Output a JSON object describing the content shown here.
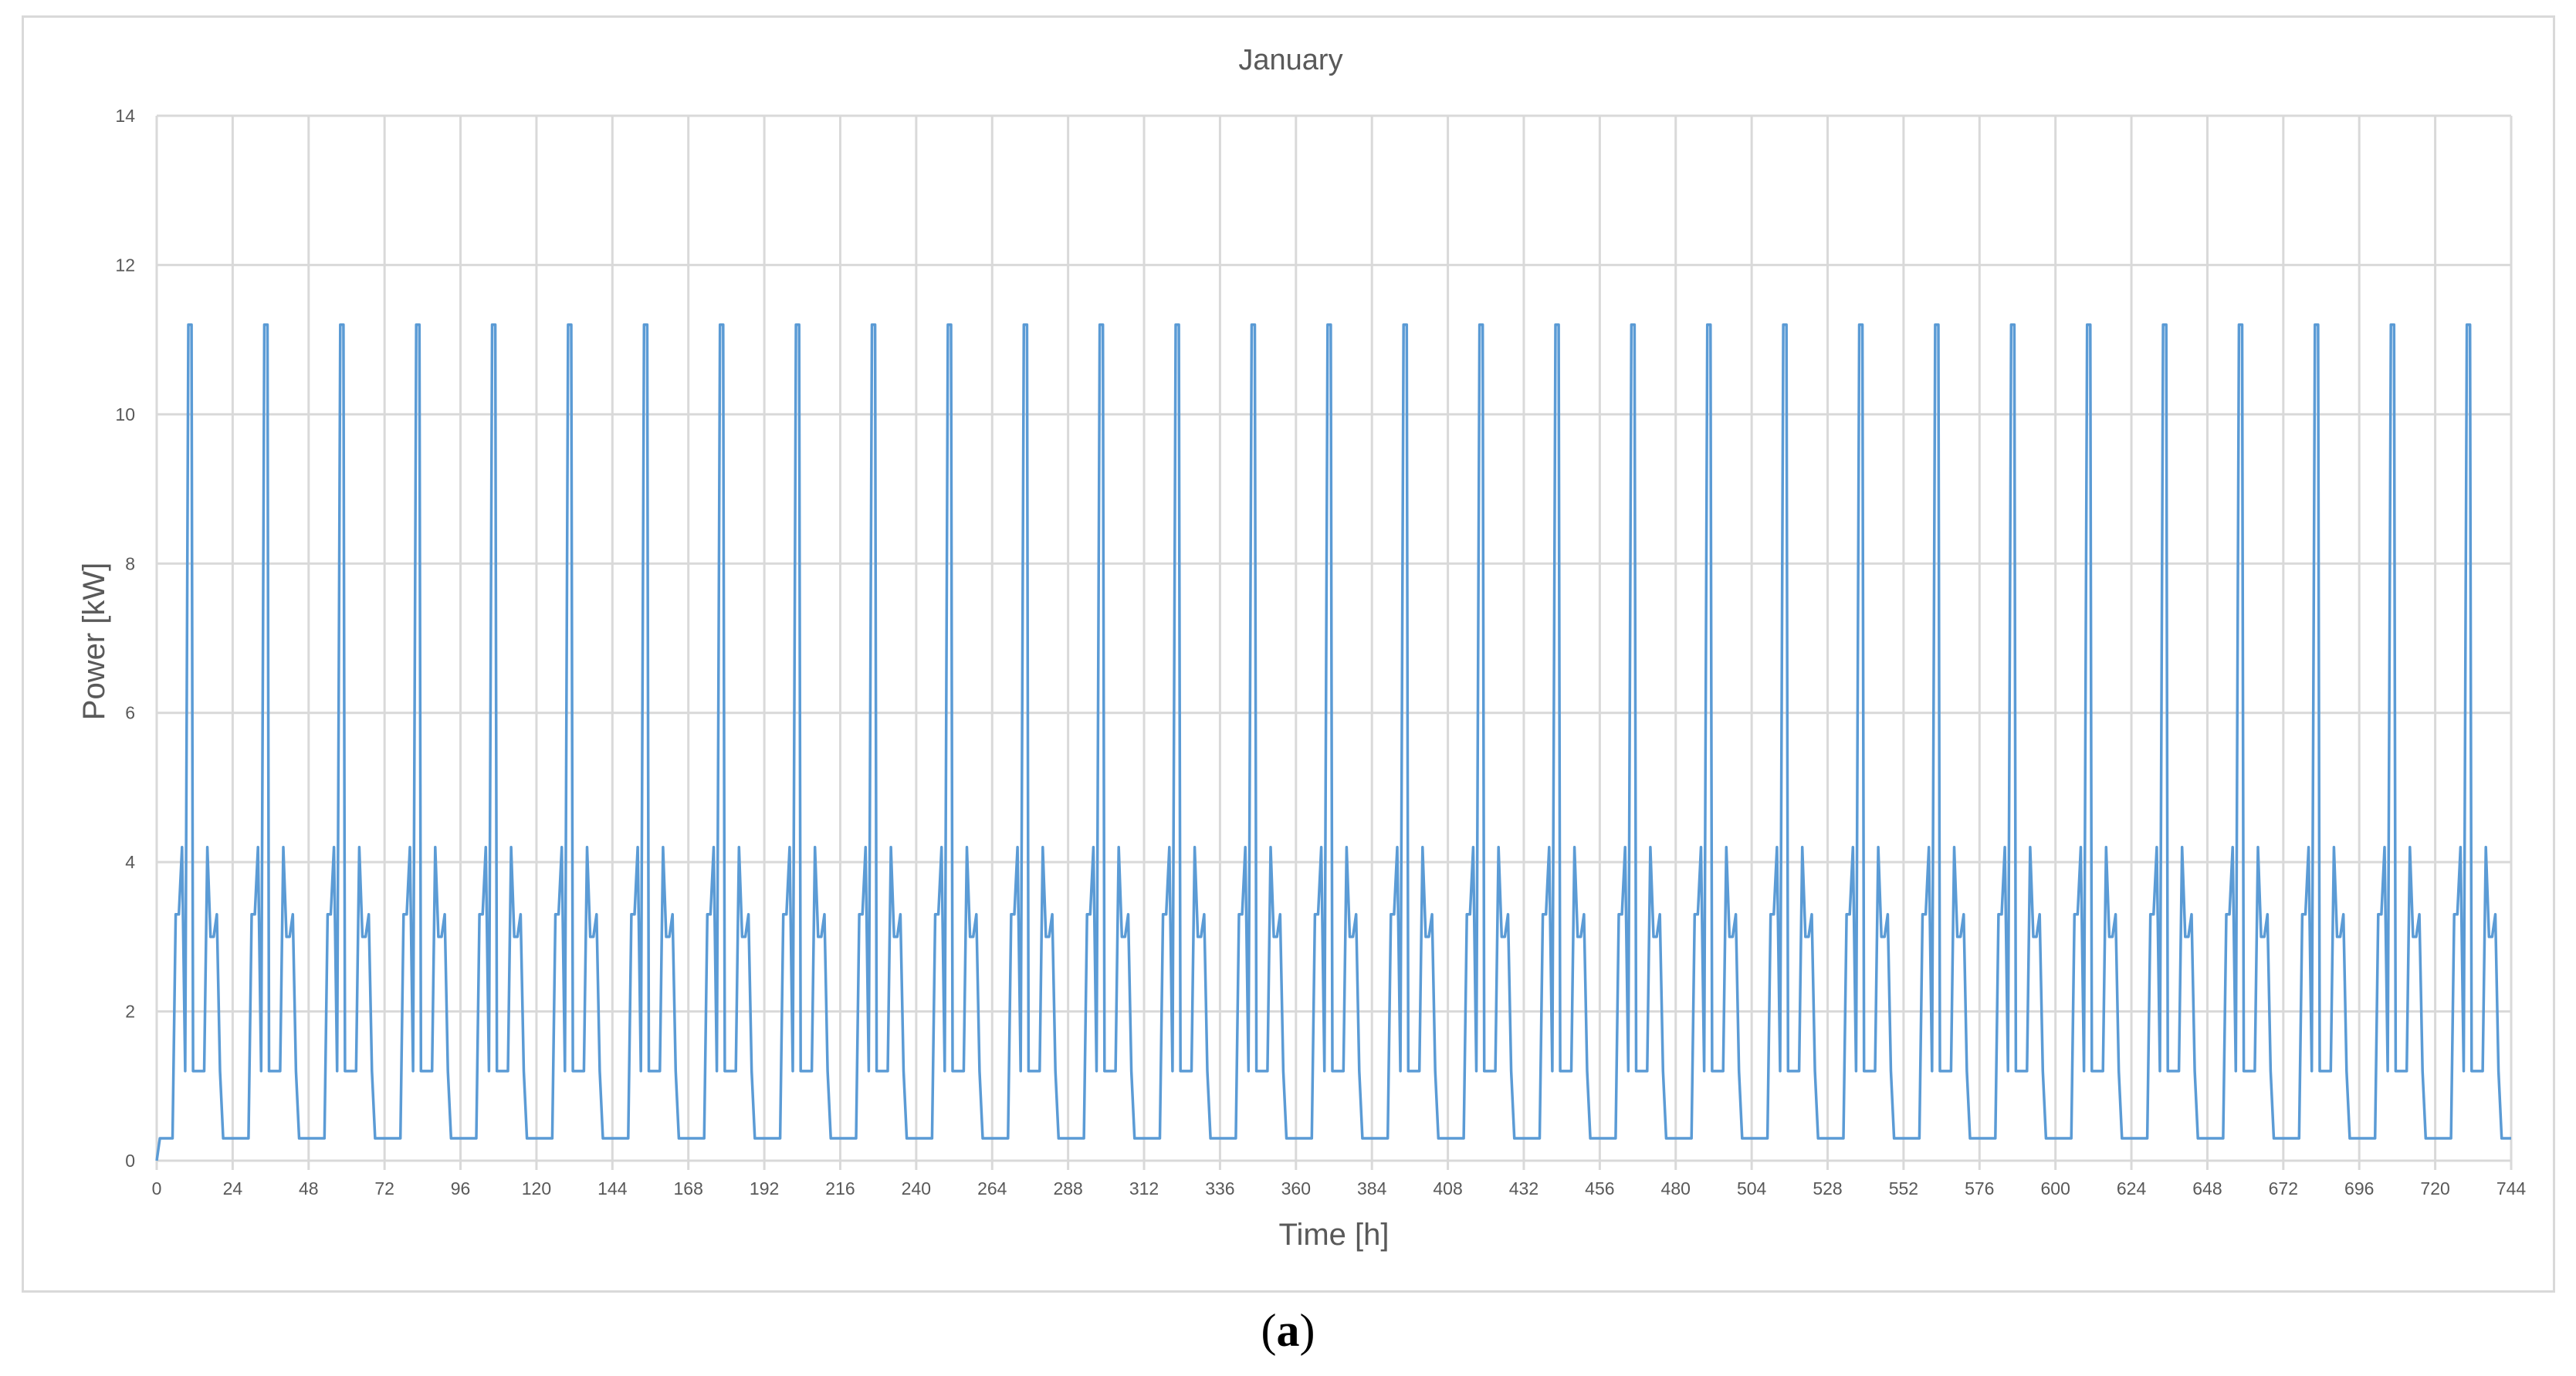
{
  "caption": {
    "open": "(",
    "letter": "a",
    "close": ")"
  },
  "chart_data": {
    "type": "line",
    "title": "January",
    "xlabel": "Time [h]",
    "ylabel": "Power [kW]",
    "xlim": [
      0,
      744
    ],
    "ylim": [
      0,
      14
    ],
    "xticks": [
      0,
      24,
      48,
      72,
      96,
      120,
      144,
      168,
      192,
      216,
      240,
      264,
      288,
      312,
      336,
      360,
      384,
      408,
      432,
      456,
      480,
      504,
      528,
      552,
      576,
      600,
      624,
      648,
      672,
      696,
      720,
      744
    ],
    "yticks": [
      0,
      2,
      4,
      6,
      8,
      10,
      12,
      14
    ],
    "grid": "both",
    "line_color": "#5b9bd5",
    "series": [
      {
        "daily_profile": {
          "hours": [
            0,
            1,
            2,
            4,
            5,
            6,
            7,
            8,
            9,
            10,
            11,
            11.5,
            12,
            13,
            14,
            15,
            16,
            17,
            18,
            19,
            20,
            21,
            24
          ],
          "values": [
            0.3,
            0.3,
            0.3,
            0.3,
            0.3,
            3.3,
            3.3,
            4.2,
            1.2,
            11.2,
            11.2,
            1.2,
            1.2,
            1.2,
            1.2,
            1.2,
            4.2,
            3.0,
            3.0,
            3.3,
            1.2,
            0.3,
            0.3
          ]
        },
        "start": [
          [
            0,
            0
          ],
          [
            1,
            0.3
          ]
        ],
        "days": 31
      }
    ]
  }
}
